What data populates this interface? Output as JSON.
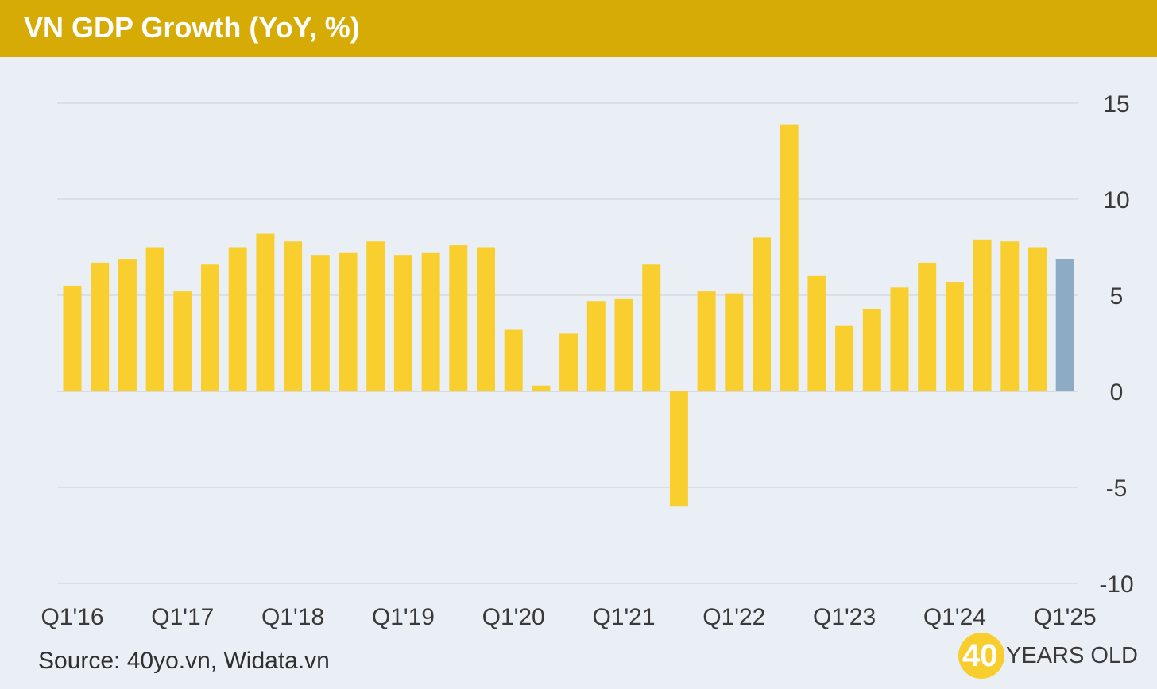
{
  "header": {
    "title": "VN GDP Growth (YoY, %)"
  },
  "footer": {
    "source": "Source: 40yo.vn, Widata.vn"
  },
  "logo": {
    "number": "40",
    "text": "YEARS OLD"
  },
  "colors": {
    "bar": "#f8cf2e",
    "bar_latest": "#8eabc6",
    "header": "#d6ab05",
    "grid": "#d7dbe0",
    "background": "#eaeff5"
  },
  "chart_data": {
    "type": "bar",
    "title": "VN GDP Growth (YoY, %)",
    "xlabel": "",
    "ylabel": "",
    "ylim": [
      -10,
      15
    ],
    "yticks": [
      15,
      10,
      5,
      0,
      -5,
      -10
    ],
    "y_axis_position": "right",
    "grid": true,
    "tick_labels": [
      "Q1'16",
      "Q1'17",
      "Q1'18",
      "Q1'19",
      "Q1'20",
      "Q1'21",
      "Q1'22",
      "Q1'23",
      "Q1'24",
      "Q1'25"
    ],
    "categories": [
      "Q1'16",
      "Q2'16",
      "Q3'16",
      "Q4'16",
      "Q1'17",
      "Q2'17",
      "Q3'17",
      "Q4'17",
      "Q1'18",
      "Q2'18",
      "Q3'18",
      "Q4'18",
      "Q1'19",
      "Q2'19",
      "Q3'19",
      "Q4'19",
      "Q1'20",
      "Q2'20",
      "Q3'20",
      "Q4'20",
      "Q1'21",
      "Q2'21",
      "Q3'21",
      "Q4'21",
      "Q1'22",
      "Q2'22",
      "Q3'22",
      "Q4'22",
      "Q1'23",
      "Q2'23",
      "Q3'23",
      "Q4'23",
      "Q1'24",
      "Q2'24",
      "Q3'24",
      "Q4'24",
      "Q1'25"
    ],
    "values": [
      5.5,
      6.7,
      6.9,
      7.5,
      5.2,
      6.6,
      7.5,
      8.2,
      7.8,
      7.1,
      7.2,
      7.8,
      7.1,
      7.2,
      7.6,
      7.5,
      3.2,
      0.3,
      3.0,
      4.7,
      4.8,
      6.6,
      -6.0,
      5.2,
      5.1,
      8.0,
      13.9,
      6.0,
      3.4,
      4.3,
      5.4,
      6.7,
      5.7,
      7.9,
      7.8,
      7.5,
      6.9
    ],
    "highlight_index": 36
  }
}
